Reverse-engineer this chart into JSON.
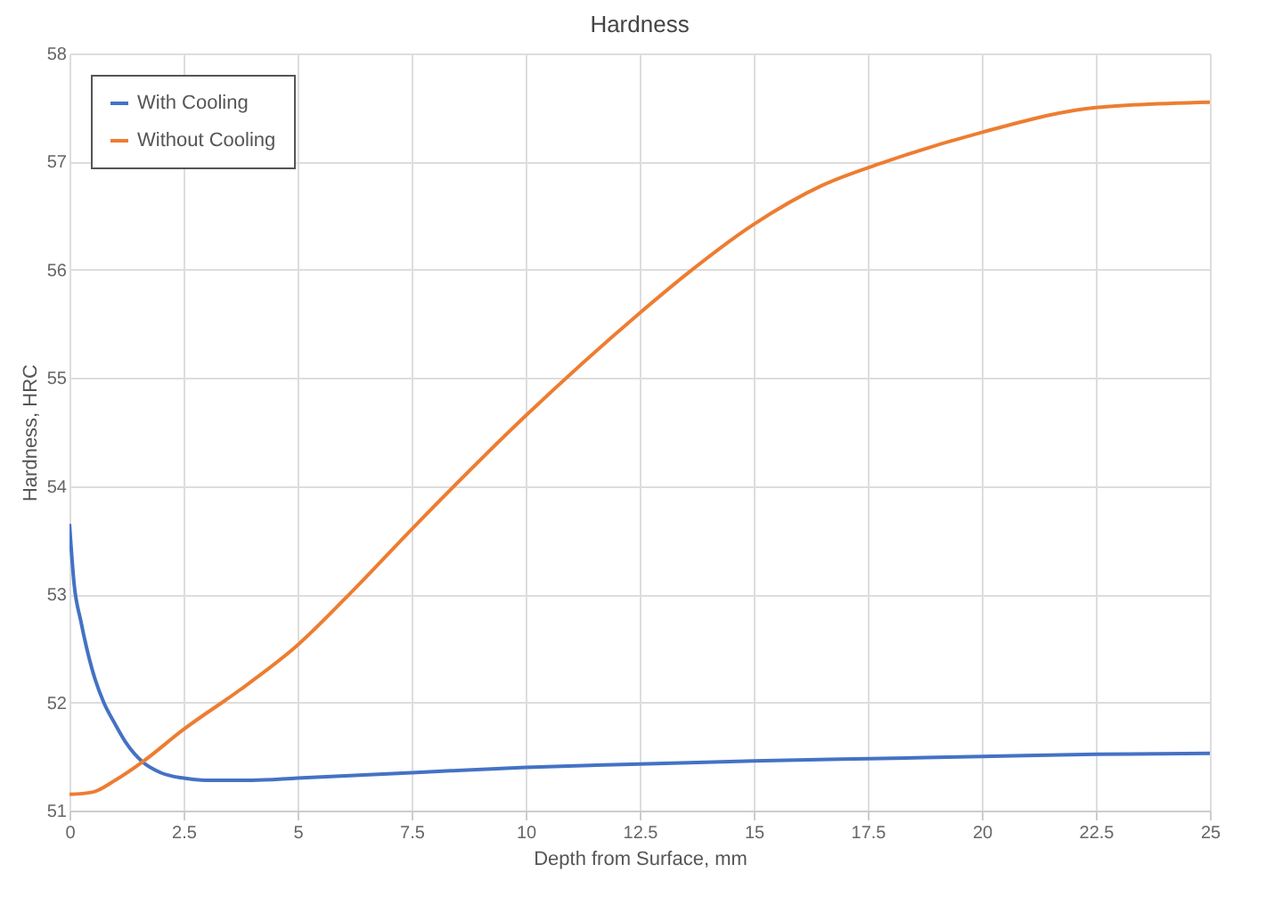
{
  "chart_data": {
    "type": "line",
    "title": "Hardness",
    "xlabel": "Depth from Surface, mm",
    "ylabel": "Hardness, HRC",
    "xlim": [
      0,
      25
    ],
    "xticks": [
      0,
      2.5,
      5,
      7.5,
      10,
      12.5,
      15,
      17.5,
      20,
      22.5,
      25
    ],
    "ylim": [
      51,
      58
    ],
    "yticks": [
      51,
      52,
      53,
      54,
      55,
      56,
      57,
      58
    ],
    "grid": true,
    "legend": "top left",
    "marker": "none",
    "line_style": "solid",
    "series": [
      {
        "name": "With Cooling",
        "color": "#4472c4",
        "x": [
          0,
          0.1,
          0.25,
          0.5,
          0.75,
          1,
          1.25,
          1.6,
          2,
          2.5,
          3,
          4,
          5,
          7.5,
          10,
          12.5,
          15,
          17.5,
          20,
          22.5,
          25
        ],
        "values": [
          53.65,
          53.1,
          52.75,
          52.3,
          52.0,
          51.8,
          51.62,
          51.45,
          51.35,
          51.3,
          51.28,
          51.28,
          51.3,
          51.35,
          51.4,
          51.43,
          51.46,
          51.48,
          51.5,
          51.52,
          51.53
        ]
      },
      {
        "name": "Without Cooling",
        "color": "#ed7d31",
        "x": [
          0,
          0.5,
          1,
          1.6,
          2.5,
          3.75,
          5,
          6.25,
          7.5,
          10,
          12.5,
          13.5,
          15,
          16.5,
          17.9,
          20,
          22.5,
          25
        ],
        "values": [
          51.15,
          51.17,
          51.28,
          51.45,
          51.75,
          52.12,
          52.53,
          53.05,
          53.6,
          54.65,
          55.6,
          55.95,
          56.42,
          56.78,
          57.0,
          57.27,
          57.5,
          57.55
        ]
      }
    ]
  }
}
